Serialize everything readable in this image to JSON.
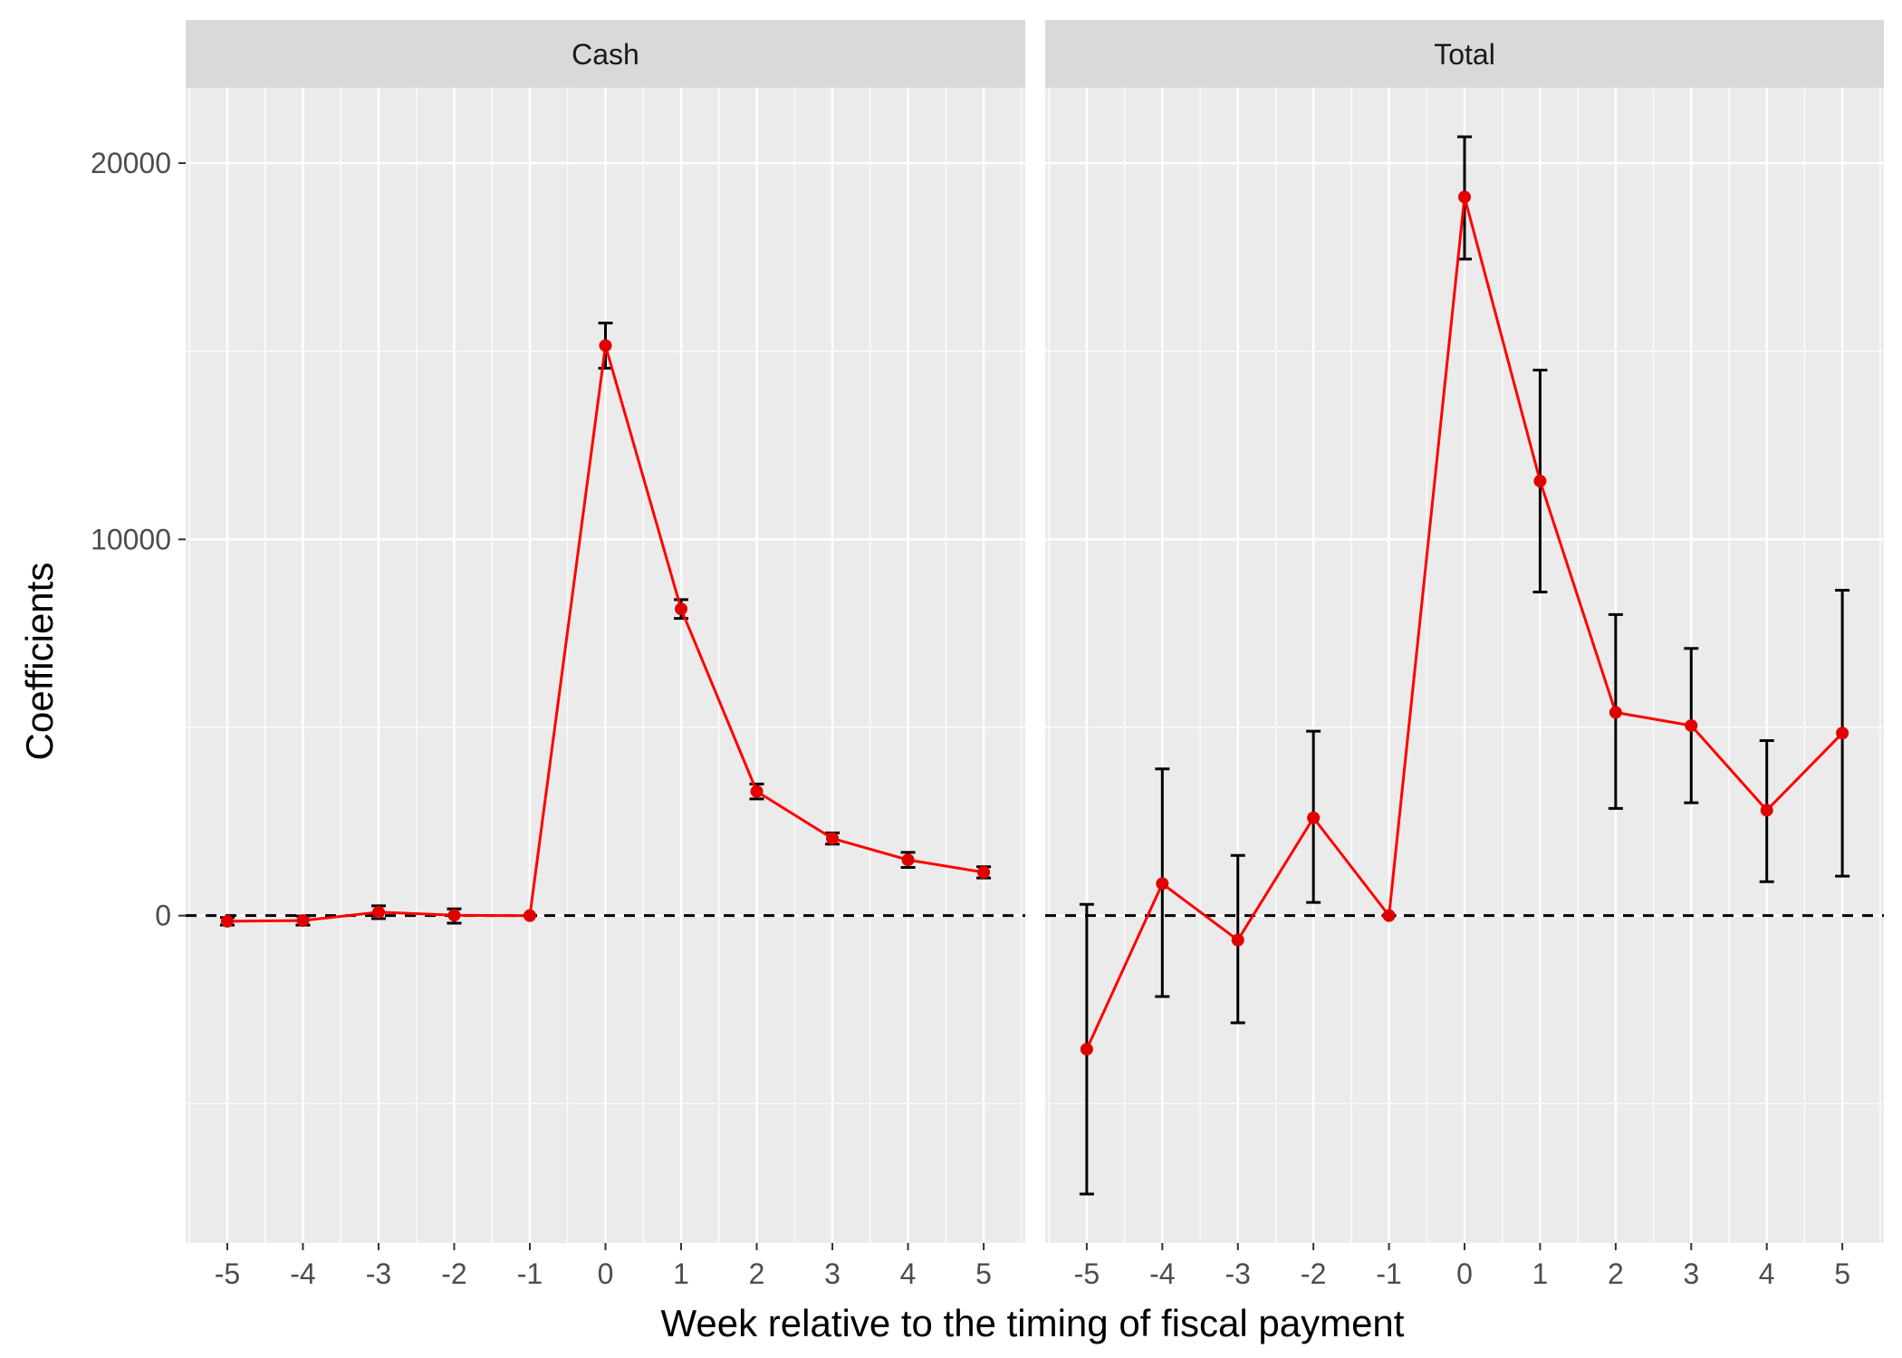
{
  "chart_data": {
    "type": "line",
    "xlabel": "Week relative to the timing of fiscal payment",
    "ylabel": "Coefficients",
    "ylim": [
      -8700,
      22000
    ],
    "y_ticks": [
      0,
      10000,
      20000
    ],
    "y_tick_labels": [
      "0",
      "10000",
      "20000"
    ],
    "x_ticks": [
      -5,
      -4,
      -3,
      -2,
      -1,
      0,
      1,
      2,
      3,
      4,
      5
    ],
    "x_tick_labels": [
      "-5",
      "-4",
      "-3",
      "-2",
      "-1",
      "0",
      "1",
      "2",
      "3",
      "4",
      "5"
    ],
    "reference_line": 0,
    "grid": true,
    "colors": {
      "line": "#ff0000",
      "point": "#e00000",
      "errorbar": "#000000",
      "panel_bg": "#ebebeb",
      "strip_bg": "#d9d9d9",
      "grid": "#ffffff"
    },
    "panels": [
      {
        "title": "Cash",
        "x": [
          -5,
          -4,
          -3,
          -2,
          -1,
          0,
          1,
          2,
          3,
          4,
          5
        ],
        "y": [
          -150,
          -130,
          90,
          10,
          0,
          15150,
          8150,
          3300,
          2050,
          1480,
          1150
        ],
        "lower": [
          -250,
          -250,
          -80,
          -200,
          0,
          14550,
          7900,
          3100,
          1900,
          1280,
          1000
        ],
        "upper": [
          -50,
          -10,
          260,
          180,
          0,
          15750,
          8400,
          3500,
          2200,
          1680,
          1300
        ]
      },
      {
        "title": "Total",
        "x": [
          -5,
          -4,
          -3,
          -2,
          -1,
          0,
          1,
          2,
          3,
          4,
          5
        ],
        "y": [
          -3550,
          850,
          -650,
          2600,
          0,
          19100,
          11550,
          5400,
          5050,
          2800,
          4850
        ],
        "lower": [
          -7400,
          -2150,
          -2850,
          350,
          0,
          17450,
          8600,
          2850,
          3000,
          900,
          1050
        ],
        "upper": [
          300,
          3900,
          1600,
          4900,
          0,
          20700,
          14500,
          8000,
          7100,
          4650,
          8650
        ]
      }
    ]
  }
}
